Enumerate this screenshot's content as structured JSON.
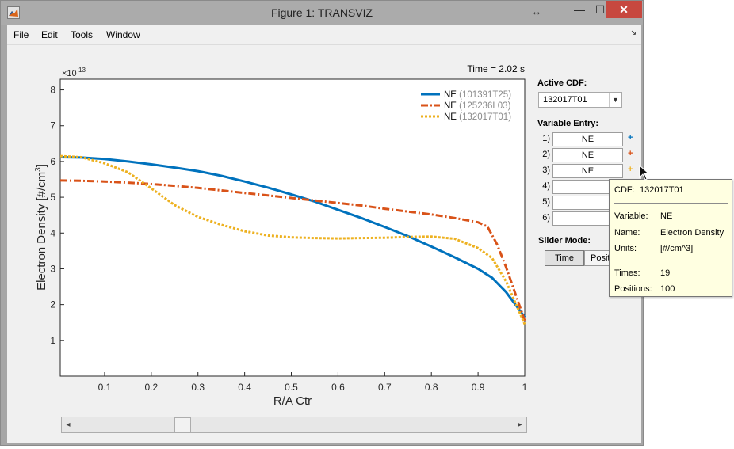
{
  "window": {
    "title": "Figure 1: TRANSVIZ",
    "resize_glyph": "↔",
    "min_glyph": "—",
    "max_glyph": "☐",
    "close_glyph": "✕"
  },
  "menu": {
    "items": [
      "File",
      "Edit",
      "Tools",
      "Window"
    ],
    "dock_arrow": "↘"
  },
  "plot": {
    "time_label": "Time = 2.02 s",
    "exponent_label": "×10",
    "exponent_power": "13",
    "legend": [
      {
        "name": "NE",
        "source": "(101391T25)",
        "color": "#0072bd",
        "style": "solid"
      },
      {
        "name": "NE",
        "source": "(125236L03)",
        "color": "#d95319",
        "style": "dashdot"
      },
      {
        "name": "NE",
        "source": "(132017T01)",
        "color": "#edb120",
        "style": "dotted"
      }
    ]
  },
  "chart_data": {
    "type": "line",
    "xlabel": "R/A Ctr",
    "ylabel": "Electron Density [#/cm3]",
    "xlim": [
      0.005,
      1.0
    ],
    "ylim": [
      0,
      8.3
    ],
    "x_ticks": [
      "0.1",
      "0.2",
      "0.3",
      "0.4",
      "0.5",
      "0.6",
      "0.7",
      "0.8",
      "0.9",
      "1"
    ],
    "y_ticks": [
      "1",
      "2",
      "3",
      "4",
      "5",
      "6",
      "7",
      "8"
    ],
    "series": [
      {
        "name": "NE (101391T25)",
        "x": [
          0.005,
          0.05,
          0.1,
          0.15,
          0.2,
          0.25,
          0.3,
          0.35,
          0.4,
          0.45,
          0.5,
          0.55,
          0.6,
          0.65,
          0.7,
          0.75,
          0.8,
          0.85,
          0.9,
          0.93,
          0.96,
          0.98,
          1.0
        ],
        "y": [
          6.12,
          6.11,
          6.07,
          6.0,
          5.92,
          5.83,
          5.73,
          5.6,
          5.44,
          5.27,
          5.08,
          4.88,
          4.65,
          4.42,
          4.17,
          3.91,
          3.62,
          3.32,
          3.0,
          2.75,
          2.35,
          2.0,
          1.65
        ]
      },
      {
        "name": "NE (125236L03)",
        "x": [
          0.005,
          0.05,
          0.1,
          0.15,
          0.2,
          0.25,
          0.3,
          0.35,
          0.4,
          0.45,
          0.5,
          0.55,
          0.6,
          0.65,
          0.7,
          0.75,
          0.8,
          0.85,
          0.9,
          0.92,
          0.94,
          0.96,
          0.98,
          1.0
        ],
        "y": [
          5.47,
          5.46,
          5.44,
          5.41,
          5.37,
          5.32,
          5.26,
          5.19,
          5.12,
          5.05,
          4.98,
          4.91,
          4.84,
          4.77,
          4.68,
          4.6,
          4.52,
          4.42,
          4.3,
          4.18,
          3.7,
          3.05,
          2.3,
          1.55
        ]
      },
      {
        "name": "NE (132017T01)",
        "x": [
          0.005,
          0.05,
          0.1,
          0.15,
          0.2,
          0.25,
          0.3,
          0.35,
          0.4,
          0.45,
          0.5,
          0.55,
          0.6,
          0.65,
          0.7,
          0.75,
          0.8,
          0.85,
          0.9,
          0.93,
          0.96,
          0.98,
          1.0
        ],
        "y": [
          6.15,
          6.12,
          5.95,
          5.7,
          5.25,
          4.78,
          4.45,
          4.23,
          4.05,
          3.93,
          3.88,
          3.86,
          3.85,
          3.86,
          3.87,
          3.89,
          3.9,
          3.84,
          3.58,
          3.3,
          2.65,
          2.05,
          1.45
        ]
      }
    ]
  },
  "panel": {
    "active_cdf_label": "Active CDF:",
    "active_cdf_value": "132017T01",
    "variable_entry_label": "Variable Entry:",
    "variables": [
      {
        "num": "1)",
        "value": "NE",
        "plus": "+",
        "plus_color": "#0072bd"
      },
      {
        "num": "2)",
        "value": "NE",
        "plus": "+",
        "plus_color": "#d95319"
      },
      {
        "num": "3)",
        "value": "NE",
        "plus": "+",
        "plus_color": "#edb120"
      },
      {
        "num": "4)",
        "value": ""
      },
      {
        "num": "5)",
        "value": ""
      },
      {
        "num": "6)",
        "value": ""
      }
    ],
    "slider_mode_label": "Slider Mode:",
    "mode_time": "Time",
    "mode_position": "Position"
  },
  "slider": {
    "value_fraction": 0.23,
    "left_arrow": "◂",
    "right_arrow": "▸"
  },
  "tooltip": {
    "cdf_key": "CDF:",
    "cdf_value": "132017T01",
    "variable_key": "Variable:",
    "variable_value": "NE",
    "name_key": "Name:",
    "name_value": "Electron Density",
    "units_key": "Units:",
    "units_value": "[#/cm^3]",
    "times_key": "Times:",
    "times_value": "19",
    "positions_key": "Positions:",
    "positions_value": "100"
  }
}
